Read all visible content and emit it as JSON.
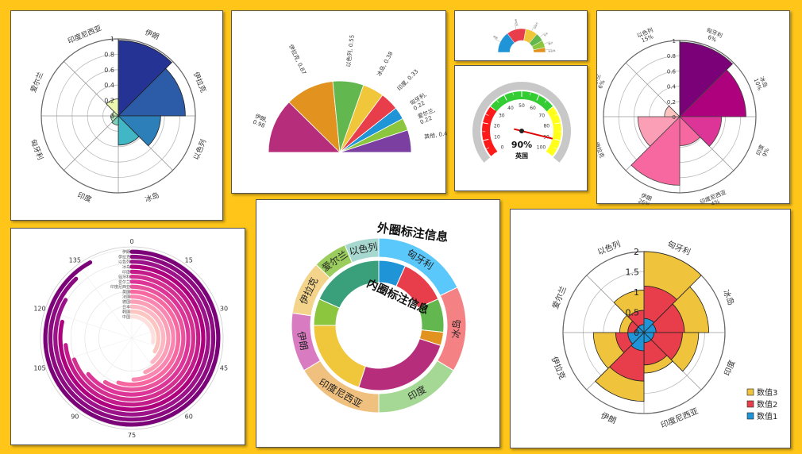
{
  "charts": [
    {
      "type": "polar-area",
      "categories": [
        "伊朗",
        "伊拉克",
        "以色列",
        "冰岛",
        "印度",
        "匈牙利",
        "爱尔兰",
        "印度尼西亚"
      ],
      "values": [
        0.98,
        0.87,
        0.55,
        0.38,
        0,
        0,
        0,
        0.22
      ],
      "colors": [
        "#253494",
        "#2C5BA8",
        "#2C7FB8",
        "#41B6C4",
        "#7FCDBB",
        "#A9DDB7",
        "#C7E9B4",
        "#EDF8B1"
      ],
      "radial_ticks": [
        "0",
        "0.2",
        "0.4",
        "0.6",
        "0.8",
        "1"
      ],
      "rmax": 1
    },
    {
      "type": "half-pie",
      "categories": [
        "伊朗",
        "伊拉克",
        "以色列",
        "冰岛",
        "印度",
        "匈牙利",
        "爱尔兰",
        "其他"
      ],
      "values": [
        0.98,
        0.87,
        0.55,
        0.38,
        0.33,
        0.22,
        0.22,
        0.4
      ],
      "labels": [
        "伊朗,\n0.98",
        "伊拉克, 0.87",
        "以色列, 0.55",
        "冰岛, 0.38",
        "印度, 0.33",
        "匈牙利,\n0.22",
        "爱尔兰,\n0.22",
        "其他, 0.4"
      ],
      "colors": [
        "#B62E7B",
        "#E2921F",
        "#62B84F",
        "#F0C73A",
        "#E83E4B",
        "#1F94D6",
        "#8CC63F",
        "#7A3FA0"
      ]
    },
    {
      "type": "mini-half-donut",
      "values": [
        0.98,
        0.87,
        0.55,
        0.38,
        0.33,
        0.22,
        0.22,
        0.4
      ],
      "colors": [
        "#1F94D6",
        "#E83E4B",
        "#F0C73A",
        "#62B84F",
        "#8CC63F",
        "#E2921F",
        "#E2921F",
        "#E2921F"
      ],
      "labels": [
        "伊朗",
        "伊拉克",
        "以色列",
        "冰岛",
        "印度",
        "匈牙利",
        "爱尔兰",
        "其他"
      ]
    },
    {
      "type": "gauge",
      "value": 90,
      "value_label": "90%",
      "name": "英国",
      "ticks": [
        "0",
        "10",
        "20",
        "30",
        "40",
        "50",
        "60",
        "70",
        "80",
        "90",
        "100"
      ],
      "bands": [
        {
          "from": 0,
          "to": 30,
          "color": "#FF1A1A"
        },
        {
          "from": 30,
          "to": 70,
          "color": "#33CC33"
        },
        {
          "from": 70,
          "to": 100,
          "color": "#FFFF1A"
        }
      ]
    },
    {
      "type": "polar-area",
      "categories": [
        "匈牙利",
        "冰岛",
        "印度",
        "印度尼西亚",
        "伊朗",
        "伊拉克",
        "爱尔兰",
        "以色列"
      ],
      "values": [
        0.98,
        0.87,
        0.55,
        0.38,
        0.9,
        0.55,
        0.2,
        0
      ],
      "percent_labels": [
        "匈牙利\n6%",
        "冰岛\n10%",
        "印度\n9%",
        "印度尼西亚\n4%",
        "伊朗\n26%",
        "伊拉克\n24%",
        "爱尔兰\n6%",
        "以色列\n15%"
      ],
      "colors": [
        "#7A0177",
        "#AE017E",
        "#DD3497",
        "#F768A1",
        "#F768A1",
        "#FA9FB5",
        "#FCC5C0",
        "#FDE0DD"
      ],
      "radial_ticks": [
        "0",
        "0.2",
        "0.4",
        "0.6",
        "0.8",
        "1"
      ],
      "rmax": 1
    },
    {
      "type": "radial-bar",
      "angle_ticks": [
        "0",
        "15",
        "30",
        "45",
        "60",
        "75",
        "90",
        "105",
        "120",
        "135"
      ],
      "categories": [
        "伊朗",
        "伊拉克",
        "以色列",
        "冰岛",
        "印度",
        "匈牙利",
        "爱尔兰",
        "印度尼西亚",
        "英国",
        "法国",
        "德国",
        "日本",
        "韩国",
        "中国"
      ],
      "values": [
        138,
        132,
        125,
        118,
        110,
        104,
        96,
        88,
        82,
        74,
        66,
        58,
        50,
        42
      ],
      "amax": 150,
      "colors": [
        "#7A0177",
        "#8B0A80",
        "#9C1389",
        "#AE017E",
        "#C41B8B",
        "#D4308F",
        "#DD3497",
        "#E8559C",
        "#F768A1",
        "#F985B1",
        "#FA9FB5",
        "#FCB6C4",
        "#FCC5C0",
        "#FDE0DD"
      ]
    },
    {
      "type": "nested-donut",
      "title_outer": "外圈标注信息",
      "title_inner": "内圈标注信息",
      "outer": {
        "categories": [
          "匈牙利",
          "冰岛",
          "印度",
          "印度尼西亚",
          "伊朗",
          "伊拉克",
          "爱尔兰",
          "以色列"
        ],
        "values": [
          0.98,
          0.87,
          0.9,
          0.9,
          0.6,
          0.55,
          0.35,
          0.35
        ],
        "colors": [
          "#5AC8FA",
          "#F48183",
          "#A6D895",
          "#F0C07F",
          "#D97BC1",
          "#F4D48A",
          "#9ACD5D",
          "#A7D8D0"
        ]
      },
      "inner": {
        "values": [
          0.2,
          0.35,
          0.25,
          0.1,
          0.75,
          0.6,
          0.2,
          0.55
        ],
        "colors": [
          "#1F94D6",
          "#E83E4B",
          "#62B84F",
          "#E2921F",
          "#B62E7B",
          "#F0C73A",
          "#8CC63F",
          "#3AA07C"
        ]
      }
    },
    {
      "type": "stacked-polar",
      "categories": [
        "匈牙利",
        "冰岛",
        "印度",
        "印度尼西亚",
        "伊朗",
        "伊拉克",
        "爱尔兰",
        "以色列"
      ],
      "series": [
        {
          "name": "数值1",
          "values": [
            0.35,
            0.3,
            0.25,
            0.25,
            0.45,
            0.4,
            0.2,
            0.2
          ],
          "color": "#1F94D6"
        },
        {
          "name": "数值2",
          "values": [
            0.8,
            0.7,
            0.7,
            0.55,
            0.75,
            0.3,
            0.2,
            0.35
          ],
          "color": "#E83E4B"
        },
        {
          "name": "数值3",
          "values": [
            0.85,
            0.6,
            0.4,
            0.2,
            0.5,
            0.55,
            0.2,
            0.5
          ],
          "color": "#F0C33C"
        }
      ],
      "radial_ticks": [
        "0",
        "0.5",
        "1",
        "1.5",
        "2"
      ],
      "rmax": 2
    }
  ]
}
